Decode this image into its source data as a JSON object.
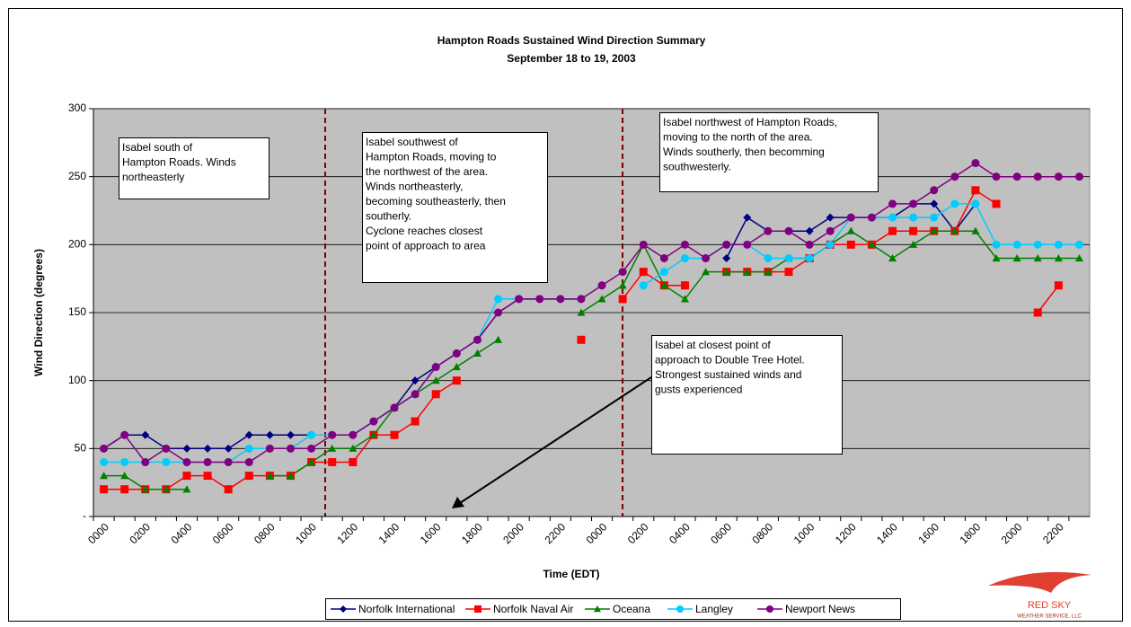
{
  "chart_data": {
    "type": "line",
    "title": "Hampton Roads Sustained Wind Direction Summary",
    "subtitle": "September 18 to 19, 2003",
    "x_label": "Time (EDT)",
    "y_label": "Wind Direction (degrees)",
    "categories": [
      "0000",
      null,
      "0200",
      null,
      "0400",
      null,
      "0600",
      null,
      "0800",
      null,
      "1000",
      null,
      "1200",
      null,
      "1400",
      null,
      "1600",
      null,
      "1800",
      null,
      "2000",
      null,
      "2200",
      null,
      "0000",
      null,
      "0200",
      null,
      "0400",
      null,
      "0600",
      null,
      "0800",
      null,
      "1000",
      null,
      "1200",
      null,
      "1400",
      null,
      "1600",
      null,
      "1800",
      null,
      "2000",
      null,
      "2200",
      null
    ],
    "ylim": [
      0,
      300
    ],
    "yticks": [
      {
        "value": 0,
        "label": "-"
      },
      50,
      100,
      150,
      200,
      250,
      300
    ],
    "grid": true,
    "legend": "bottom",
    "series": [
      {
        "name": "Norfolk International",
        "color": "#000080",
        "marker": "diamond",
        "values": [
          50,
          60,
          60,
          50,
          50,
          50,
          50,
          60,
          60,
          60,
          60,
          60,
          60,
          70,
          80,
          100,
          110,
          120,
          130,
          150,
          160,
          160,
          160,
          160,
          null,
          null,
          null,
          null,
          null,
          null,
          190,
          220,
          210,
          210,
          210,
          220,
          220,
          220,
          220,
          230,
          230,
          210,
          230,
          null,
          null,
          null,
          null,
          null
        ]
      },
      {
        "name": "Norfolk Naval Air",
        "color": "#ff0000",
        "marker": "square",
        "values": [
          20,
          20,
          20,
          20,
          30,
          30,
          20,
          30,
          30,
          30,
          40,
          40,
          40,
          60,
          60,
          70,
          90,
          100,
          null,
          null,
          null,
          null,
          null,
          130,
          null,
          160,
          180,
          170,
          170,
          null,
          180,
          180,
          180,
          180,
          190,
          200,
          200,
          200,
          210,
          210,
          210,
          210,
          240,
          230,
          null,
          150,
          170,
          null
        ]
      },
      {
        "name": "Oceana",
        "color": "#008000",
        "marker": "triangle",
        "values": [
          30,
          30,
          20,
          20,
          20,
          null,
          null,
          null,
          30,
          30,
          40,
          50,
          50,
          60,
          80,
          90,
          100,
          110,
          120,
          130,
          null,
          null,
          null,
          150,
          160,
          170,
          200,
          170,
          160,
          180,
          180,
          180,
          180,
          190,
          190,
          200,
          210,
          200,
          190,
          200,
          210,
          210,
          210,
          190,
          190,
          190,
          190,
          190
        ]
      },
      {
        "name": "Langley",
        "color": "#00ccff",
        "marker": "circle",
        "values": [
          40,
          40,
          40,
          40,
          40,
          40,
          40,
          50,
          50,
          50,
          60,
          60,
          60,
          70,
          80,
          90,
          110,
          120,
          130,
          160,
          160,
          160,
          160,
          160,
          null,
          null,
          170,
          180,
          190,
          190,
          200,
          200,
          190,
          190,
          190,
          200,
          220,
          220,
          220,
          220,
          220,
          230,
          230,
          200,
          200,
          200,
          200,
          200
        ]
      },
      {
        "name": "Newport News",
        "color": "#800080",
        "marker": "circle",
        "values": [
          50,
          60,
          40,
          50,
          40,
          40,
          40,
          40,
          50,
          50,
          50,
          60,
          60,
          70,
          80,
          90,
          110,
          120,
          130,
          150,
          160,
          160,
          160,
          160,
          170,
          180,
          200,
          190,
          200,
          190,
          200,
          200,
          210,
          210,
          200,
          210,
          220,
          220,
          230,
          230,
          240,
          250,
          260,
          250,
          250,
          250,
          250,
          250
        ]
      }
    ],
    "annotations": [
      {
        "lines": [
          "Isabel south of",
          "Hampton Roads. Winds",
          "northeasterly"
        ]
      },
      {
        "lines": [
          "Isabel southwest of",
          "Hampton Roads, moving to",
          "the northwest of the area.",
          "Winds northeasterly,",
          "becoming southeasterly, then",
          "southerly.",
          "Cyclone reaches closest",
          "point of approach to area"
        ]
      },
      {
        "lines": [
          "Isabel northwest of Hampton Roads,",
          "moving to the north  of the area.",
          "Winds southerly, then becomming",
          "southwesterly."
        ]
      },
      {
        "lines": [
          "Isabel at closest point of",
          "approach to Double Tree Hotel.",
          "Strongest sustained winds and",
          "gusts experienced"
        ]
      }
    ],
    "logo": {
      "name": "RED SKY",
      "tagline": "WEATHER SERVICE, LLC"
    }
  }
}
